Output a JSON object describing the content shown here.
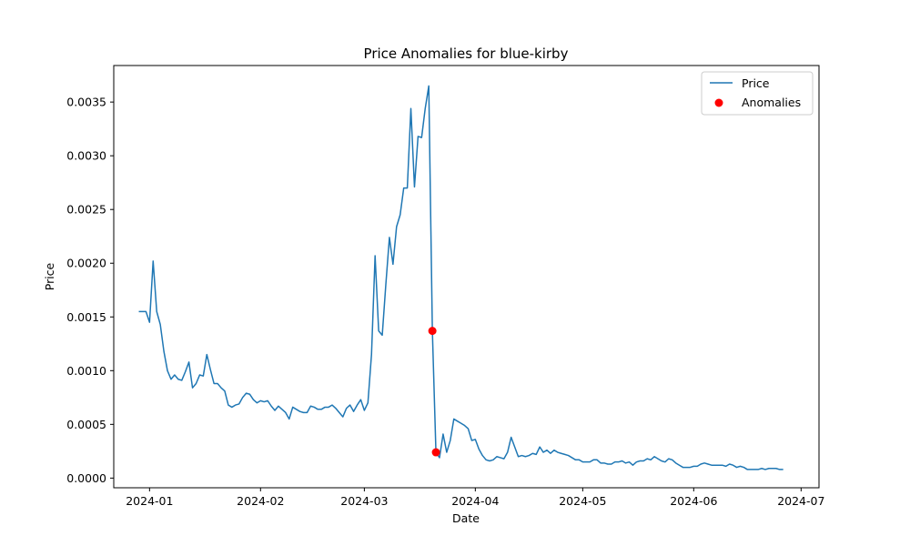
{
  "chart_data": {
    "type": "line",
    "title": "Price Anomalies for blue-kirby",
    "xlabel": "Date",
    "ylabel": "Price",
    "xlim": [
      "2023-12-22",
      "2024-07-06"
    ],
    "ylim": [
      -9e-05,
      0.00384
    ],
    "x_ticks": [
      "2024-01",
      "2024-02",
      "2024-03",
      "2024-04",
      "2024-05",
      "2024-06",
      "2024-07"
    ],
    "x_tick_dates": [
      "2024-01-01",
      "2024-02-01",
      "2024-03-01",
      "2024-04-01",
      "2024-05-01",
      "2024-06-01",
      "2024-07-01"
    ],
    "y_ticks": [
      "0.0000",
      "0.0005",
      "0.0010",
      "0.0015",
      "0.0020",
      "0.0025",
      "0.0030",
      "0.0035"
    ],
    "y_tick_values": [
      0,
      0.0005,
      0.001,
      0.0015,
      0.002,
      0.0025,
      0.003,
      0.0035
    ],
    "grid": false,
    "legend_position": "top-right",
    "series": [
      {
        "name": "Price",
        "type": "line",
        "color": "#1f77b4",
        "points": [
          [
            "2023-12-29",
            0.00155
          ],
          [
            "2023-12-30",
            0.00155
          ],
          [
            "2023-12-31",
            0.00155
          ],
          [
            "2024-01-01",
            0.00145
          ],
          [
            "2024-01-02",
            0.00202
          ],
          [
            "2024-01-03",
            0.00155
          ],
          [
            "2024-01-04",
            0.00143
          ],
          [
            "2024-01-05",
            0.00118
          ],
          [
            "2024-01-06",
            0.001
          ],
          [
            "2024-01-07",
            0.00092
          ],
          [
            "2024-01-08",
            0.00096
          ],
          [
            "2024-01-09",
            0.00092
          ],
          [
            "2024-01-10",
            0.00091
          ],
          [
            "2024-01-11",
            0.00099
          ],
          [
            "2024-01-12",
            0.00108
          ],
          [
            "2024-01-13",
            0.00084
          ],
          [
            "2024-01-14",
            0.00088
          ],
          [
            "2024-01-15",
            0.00096
          ],
          [
            "2024-01-16",
            0.00095
          ],
          [
            "2024-01-17",
            0.00115
          ],
          [
            "2024-01-18",
            0.00101
          ],
          [
            "2024-01-19",
            0.00088
          ],
          [
            "2024-01-20",
            0.00088
          ],
          [
            "2024-01-21",
            0.00084
          ],
          [
            "2024-01-22",
            0.00081
          ],
          [
            "2024-01-23",
            0.00068
          ],
          [
            "2024-01-24",
            0.00066
          ],
          [
            "2024-01-25",
            0.00068
          ],
          [
            "2024-01-26",
            0.00069
          ],
          [
            "2024-01-27",
            0.00075
          ],
          [
            "2024-01-28",
            0.00079
          ],
          [
            "2024-01-29",
            0.00078
          ],
          [
            "2024-01-30",
            0.00073
          ],
          [
            "2024-01-31",
            0.0007
          ],
          [
            "2024-02-01",
            0.00072
          ],
          [
            "2024-02-02",
            0.00071
          ],
          [
            "2024-02-03",
            0.00072
          ],
          [
            "2024-02-04",
            0.00067
          ],
          [
            "2024-02-05",
            0.00063
          ],
          [
            "2024-02-06",
            0.00067
          ],
          [
            "2024-02-07",
            0.00064
          ],
          [
            "2024-02-08",
            0.00061
          ],
          [
            "2024-02-09",
            0.00055
          ],
          [
            "2024-02-10",
            0.00066
          ],
          [
            "2024-02-11",
            0.00064
          ],
          [
            "2024-02-12",
            0.00062
          ],
          [
            "2024-02-13",
            0.00061
          ],
          [
            "2024-02-14",
            0.00061
          ],
          [
            "2024-02-15",
            0.00067
          ],
          [
            "2024-02-16",
            0.00066
          ],
          [
            "2024-02-17",
            0.00064
          ],
          [
            "2024-02-18",
            0.00064
          ],
          [
            "2024-02-19",
            0.00066
          ],
          [
            "2024-02-20",
            0.00066
          ],
          [
            "2024-02-21",
            0.00068
          ],
          [
            "2024-02-22",
            0.00065
          ],
          [
            "2024-02-23",
            0.00061
          ],
          [
            "2024-02-24",
            0.00057
          ],
          [
            "2024-02-25",
            0.00065
          ],
          [
            "2024-02-26",
            0.00068
          ],
          [
            "2024-02-27",
            0.00062
          ],
          [
            "2024-02-28",
            0.00068
          ],
          [
            "2024-02-29",
            0.00073
          ],
          [
            "2024-03-01",
            0.00063
          ],
          [
            "2024-03-02",
            0.0007
          ],
          [
            "2024-03-03",
            0.00115
          ],
          [
            "2024-03-04",
            0.00207
          ],
          [
            "2024-03-05",
            0.00137
          ],
          [
            "2024-03-06",
            0.00133
          ],
          [
            "2024-03-07",
            0.0018
          ],
          [
            "2024-03-08",
            0.00224
          ],
          [
            "2024-03-09",
            0.00199
          ],
          [
            "2024-03-10",
            0.00234
          ],
          [
            "2024-03-11",
            0.00245
          ],
          [
            "2024-03-12",
            0.0027
          ],
          [
            "2024-03-13",
            0.0027
          ],
          [
            "2024-03-14",
            0.00344
          ],
          [
            "2024-03-15",
            0.00271
          ],
          [
            "2024-03-16",
            0.00318
          ],
          [
            "2024-03-17",
            0.00317
          ],
          [
            "2024-03-18",
            0.00344
          ],
          [
            "2024-03-19",
            0.00365
          ],
          [
            "2024-03-20",
            0.00137
          ],
          [
            "2024-03-21",
            0.00024
          ],
          [
            "2024-03-22",
            0.00019
          ],
          [
            "2024-03-23",
            0.00041
          ],
          [
            "2024-03-24",
            0.00024
          ],
          [
            "2024-03-25",
            0.00035
          ],
          [
            "2024-03-26",
            0.00055
          ],
          [
            "2024-03-27",
            0.00053
          ],
          [
            "2024-03-28",
            0.00051
          ],
          [
            "2024-03-29",
            0.00049
          ],
          [
            "2024-03-30",
            0.00046
          ],
          [
            "2024-03-31",
            0.00035
          ],
          [
            "2024-04-01",
            0.00036
          ],
          [
            "2024-04-02",
            0.00027
          ],
          [
            "2024-04-03",
            0.00021
          ],
          [
            "2024-04-04",
            0.00017
          ],
          [
            "2024-04-05",
            0.00016
          ],
          [
            "2024-04-06",
            0.00017
          ],
          [
            "2024-04-07",
            0.0002
          ],
          [
            "2024-04-08",
            0.00019
          ],
          [
            "2024-04-09",
            0.00018
          ],
          [
            "2024-04-10",
            0.00024
          ],
          [
            "2024-04-11",
            0.00038
          ],
          [
            "2024-04-12",
            0.00029
          ],
          [
            "2024-04-13",
            0.0002
          ],
          [
            "2024-04-14",
            0.00021
          ],
          [
            "2024-04-15",
            0.0002
          ],
          [
            "2024-04-16",
            0.00021
          ],
          [
            "2024-04-17",
            0.00023
          ],
          [
            "2024-04-18",
            0.00022
          ],
          [
            "2024-04-19",
            0.00029
          ],
          [
            "2024-04-20",
            0.00024
          ],
          [
            "2024-04-21",
            0.00026
          ],
          [
            "2024-04-22",
            0.00023
          ],
          [
            "2024-04-23",
            0.00026
          ],
          [
            "2024-04-24",
            0.00024
          ],
          [
            "2024-04-25",
            0.00023
          ],
          [
            "2024-04-26",
            0.00022
          ],
          [
            "2024-04-27",
            0.00021
          ],
          [
            "2024-04-28",
            0.00019
          ],
          [
            "2024-04-29",
            0.00017
          ],
          [
            "2024-04-30",
            0.00017
          ],
          [
            "2024-05-01",
            0.00015
          ],
          [
            "2024-05-02",
            0.00015
          ],
          [
            "2024-05-03",
            0.00015
          ],
          [
            "2024-05-04",
            0.00017
          ],
          [
            "2024-05-05",
            0.00017
          ],
          [
            "2024-05-06",
            0.00014
          ],
          [
            "2024-05-07",
            0.00014
          ],
          [
            "2024-05-08",
            0.00013
          ],
          [
            "2024-05-09",
            0.00013
          ],
          [
            "2024-05-10",
            0.00015
          ],
          [
            "2024-05-11",
            0.00015
          ],
          [
            "2024-05-12",
            0.00016
          ],
          [
            "2024-05-13",
            0.00014
          ],
          [
            "2024-05-14",
            0.00015
          ],
          [
            "2024-05-15",
            0.00012
          ],
          [
            "2024-05-16",
            0.00015
          ],
          [
            "2024-05-17",
            0.00016
          ],
          [
            "2024-05-18",
            0.00016
          ],
          [
            "2024-05-19",
            0.00018
          ],
          [
            "2024-05-20",
            0.00017
          ],
          [
            "2024-05-21",
            0.0002
          ],
          [
            "2024-05-22",
            0.00018
          ],
          [
            "2024-05-23",
            0.00016
          ],
          [
            "2024-05-24",
            0.00015
          ],
          [
            "2024-05-25",
            0.00018
          ],
          [
            "2024-05-26",
            0.00017
          ],
          [
            "2024-05-27",
            0.00014
          ],
          [
            "2024-05-28",
            0.00012
          ],
          [
            "2024-05-29",
            0.0001
          ],
          [
            "2024-05-30",
            0.0001
          ],
          [
            "2024-05-31",
            0.0001
          ],
          [
            "2024-06-01",
            0.00011
          ],
          [
            "2024-06-02",
            0.00011
          ],
          [
            "2024-06-03",
            0.00013
          ],
          [
            "2024-06-04",
            0.00014
          ],
          [
            "2024-06-05",
            0.00013
          ],
          [
            "2024-06-06",
            0.00012
          ],
          [
            "2024-06-07",
            0.00012
          ],
          [
            "2024-06-08",
            0.00012
          ],
          [
            "2024-06-09",
            0.00012
          ],
          [
            "2024-06-10",
            0.00011
          ],
          [
            "2024-06-11",
            0.00013
          ],
          [
            "2024-06-12",
            0.00012
          ],
          [
            "2024-06-13",
            0.0001
          ],
          [
            "2024-06-14",
            0.00011
          ],
          [
            "2024-06-15",
            0.0001
          ],
          [
            "2024-06-16",
            8e-05
          ],
          [
            "2024-06-17",
            8e-05
          ],
          [
            "2024-06-18",
            8e-05
          ],
          [
            "2024-06-19",
            8e-05
          ],
          [
            "2024-06-20",
            9e-05
          ],
          [
            "2024-06-21",
            8e-05
          ],
          [
            "2024-06-22",
            9e-05
          ],
          [
            "2024-06-23",
            9e-05
          ],
          [
            "2024-06-24",
            9e-05
          ],
          [
            "2024-06-25",
            8e-05
          ],
          [
            "2024-06-26",
            8e-05
          ]
        ]
      },
      {
        "name": "Anomalies",
        "type": "scatter",
        "color": "#ff0000",
        "points": [
          [
            "2024-03-20",
            0.00137
          ],
          [
            "2024-03-21",
            0.00024
          ]
        ]
      }
    ]
  }
}
